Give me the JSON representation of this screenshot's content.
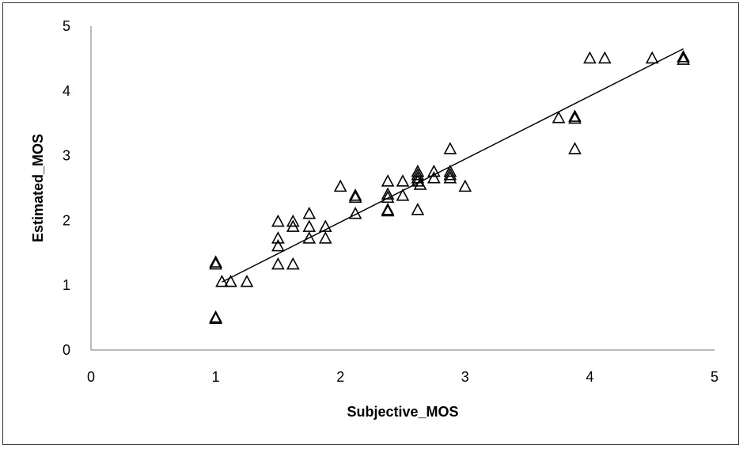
{
  "chart_data": {
    "type": "scatter",
    "title": "",
    "xlabel": "Subjective_MOS",
    "ylabel": "Estimated_MOS",
    "xlim": [
      0,
      5
    ],
    "ylim": [
      0,
      5
    ],
    "x_ticks": [
      "0",
      "1",
      "2",
      "3",
      "4",
      "5"
    ],
    "y_ticks": [
      "0",
      "1",
      "2",
      "3",
      "4",
      "5"
    ],
    "grid": false,
    "legend": "none",
    "marker": "open-triangle",
    "marker_color": "#000000",
    "trendline": {
      "type": "linear",
      "x": [
        1.05,
        4.75
      ],
      "y": [
        1.05,
        4.65
      ]
    },
    "series": [
      {
        "points": [
          [
            1.0,
            1.35
          ],
          [
            1.0,
            1.32
          ],
          [
            1.0,
            0.5
          ],
          [
            1.0,
            0.48
          ],
          [
            1.05,
            1.05
          ],
          [
            1.12,
            1.05
          ],
          [
            1.25,
            1.05
          ],
          [
            1.5,
            1.98
          ],
          [
            1.5,
            1.72
          ],
          [
            1.5,
            1.6
          ],
          [
            1.5,
            1.32
          ],
          [
            1.62,
            1.98
          ],
          [
            1.62,
            1.9
          ],
          [
            1.62,
            1.32
          ],
          [
            1.75,
            2.1
          ],
          [
            1.75,
            1.9
          ],
          [
            1.75,
            1.72
          ],
          [
            1.88,
            1.9
          ],
          [
            1.88,
            1.72
          ],
          [
            2.0,
            2.52
          ],
          [
            2.12,
            2.38
          ],
          [
            2.12,
            2.35
          ],
          [
            2.12,
            2.1
          ],
          [
            2.38,
            2.6
          ],
          [
            2.38,
            2.4
          ],
          [
            2.38,
            2.35
          ],
          [
            2.38,
            2.16
          ],
          [
            2.38,
            2.14
          ],
          [
            2.5,
            2.6
          ],
          [
            2.5,
            2.38
          ],
          [
            2.62,
            2.75
          ],
          [
            2.62,
            2.7
          ],
          [
            2.62,
            2.65
          ],
          [
            2.62,
            2.6
          ],
          [
            2.62,
            2.16
          ],
          [
            2.64,
            2.55
          ],
          [
            2.75,
            2.75
          ],
          [
            2.75,
            2.65
          ],
          [
            2.88,
            3.1
          ],
          [
            2.88,
            2.75
          ],
          [
            2.88,
            2.7
          ],
          [
            2.88,
            2.65
          ],
          [
            3.0,
            2.52
          ],
          [
            3.75,
            3.58
          ],
          [
            3.88,
            3.6
          ],
          [
            3.88,
            3.57
          ],
          [
            3.88,
            3.1
          ],
          [
            4.0,
            4.5
          ],
          [
            4.12,
            4.5
          ],
          [
            4.5,
            4.5
          ],
          [
            4.75,
            4.52
          ],
          [
            4.75,
            4.48
          ]
        ]
      }
    ]
  }
}
